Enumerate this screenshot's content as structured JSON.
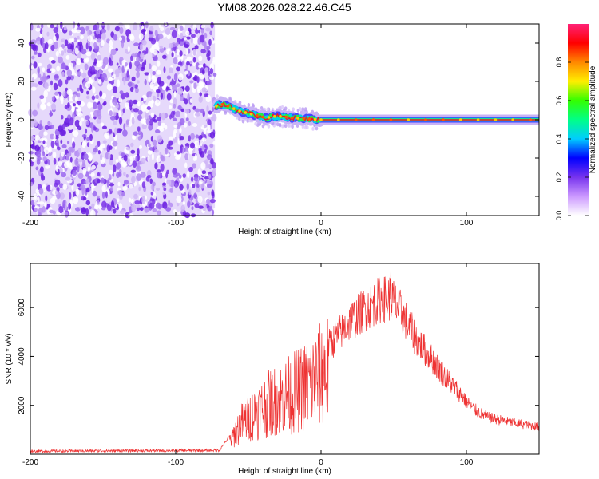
{
  "figure_title": "YM08.2026.028.22.46.C45",
  "chart_data": [
    {
      "type": "heatmap",
      "title": "YM08.2026.028.22.46.C45",
      "xlabel": "Height of straight line (km)",
      "ylabel": "Frequency (Hz)",
      "xlim": [
        -200,
        150
      ],
      "ylim": [
        -50,
        50
      ],
      "xticks": [
        -200,
        -100,
        0,
        100
      ],
      "yticks": [
        -40,
        -20,
        0,
        20,
        40
      ],
      "noise_region_x": [
        -200,
        -73
      ],
      "signal_start_x": -73,
      "doppler_track": [
        {
          "x": -73,
          "y": 7
        },
        {
          "x": -68,
          "y": 8
        },
        {
          "x": -63,
          "y": 7
        },
        {
          "x": -58,
          "y": 5
        },
        {
          "x": -53,
          "y": 4
        },
        {
          "x": -48,
          "y": 3
        },
        {
          "x": -43,
          "y": 2
        },
        {
          "x": -38,
          "y": 1
        },
        {
          "x": -30,
          "y": 2
        },
        {
          "x": -20,
          "y": 1
        },
        {
          "x": -10,
          "y": 0.5
        },
        {
          "x": 0,
          "y": 0
        },
        {
          "x": 150,
          "y": 0
        }
      ],
      "colorbar": {
        "label": "Normalized spectral amplitude",
        "range": [
          0,
          1
        ],
        "ticks": [
          0.0,
          0.2,
          0.4,
          0.6,
          0.8
        ],
        "tick_labels": [
          "0.0",
          "0.2",
          "0.4",
          "0.6",
          "0.8"
        ],
        "colors": [
          "#ffffff",
          "#cc99ff",
          "#7733ee",
          "#0000ff",
          "#00ccff",
          "#00ff88",
          "#33ff00",
          "#ffee00",
          "#ff8800",
          "#ff0000",
          "#ff2277"
        ]
      }
    },
    {
      "type": "line",
      "xlabel": "Height of straight line (km)",
      "ylabel": "SNR (10 * v/v)",
      "xlim": [
        -200,
        150
      ],
      "ylim": [
        0,
        7800
      ],
      "xticks": [
        -200,
        -100,
        0,
        100
      ],
      "yticks": [
        2000,
        4000,
        6000
      ],
      "series": [
        {
          "name": "SNR",
          "color": "#ee3333",
          "envelope": [
            {
              "x": -200,
              "y": 120
            },
            {
              "x": -150,
              "y": 140
            },
            {
              "x": -100,
              "y": 150
            },
            {
              "x": -70,
              "y": 160
            },
            {
              "x": -62,
              "y": 800
            },
            {
              "x": -55,
              "y": 1600
            },
            {
              "x": -45,
              "y": 2200
            },
            {
              "x": -35,
              "y": 2700
            },
            {
              "x": -20,
              "y": 3200
            },
            {
              "x": -10,
              "y": 3600
            },
            {
              "x": 0,
              "y": 4200
            },
            {
              "x": 10,
              "y": 4900
            },
            {
              "x": 20,
              "y": 5600
            },
            {
              "x": 30,
              "y": 6100
            },
            {
              "x": 40,
              "y": 6500
            },
            {
              "x": 48,
              "y": 6600
            },
            {
              "x": 55,
              "y": 6000
            },
            {
              "x": 65,
              "y": 4900
            },
            {
              "x": 75,
              "y": 4100
            },
            {
              "x": 85,
              "y": 3300
            },
            {
              "x": 95,
              "y": 2600
            },
            {
              "x": 105,
              "y": 1900
            },
            {
              "x": 115,
              "y": 1550
            },
            {
              "x": 130,
              "y": 1350
            },
            {
              "x": 150,
              "y": 1150
            }
          ],
          "peak": {
            "x": 48,
            "y": 7600
          }
        }
      ]
    }
  ]
}
